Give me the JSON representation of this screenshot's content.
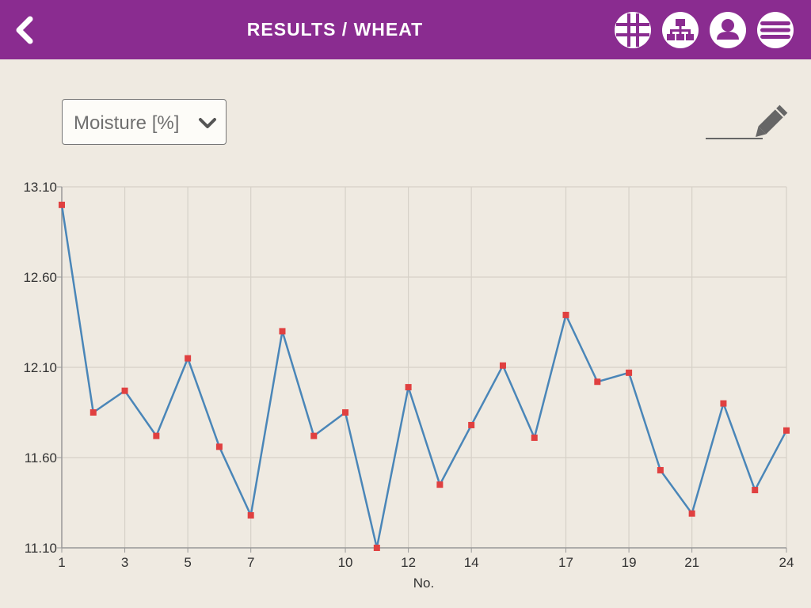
{
  "header": {
    "title": "RESULTS / WHEAT",
    "background_color": "#8a2c90",
    "icons": [
      "back-icon",
      "grid-icon",
      "network-icon",
      "user-icon",
      "menu-icon"
    ]
  },
  "selector": {
    "value": "Moisture [%]",
    "icon": "chevron-down-icon"
  },
  "edit": {
    "icon": "pencil-icon"
  },
  "chart_data": {
    "type": "line",
    "xlabel": "No.",
    "ylabel": "",
    "x": [
      1,
      2,
      3,
      4,
      5,
      6,
      7,
      8,
      9,
      10,
      11,
      12,
      13,
      14,
      15,
      16,
      17,
      18,
      19,
      20,
      21,
      22,
      23,
      24
    ],
    "values": [
      13.0,
      11.85,
      11.97,
      11.72,
      12.15,
      11.66,
      11.28,
      12.3,
      11.72,
      11.85,
      11.1,
      11.99,
      11.45,
      11.78,
      12.11,
      11.71,
      12.39,
      12.02,
      12.07,
      11.53,
      11.29,
      11.9,
      11.42,
      11.75
    ],
    "xlim": [
      1,
      24
    ],
    "ylim": [
      11.1,
      13.1
    ],
    "y_ticks": [
      "11.10",
      "11.60",
      "12.10",
      "12.60",
      "13.10"
    ],
    "x_ticks": [
      "1",
      "3",
      "5",
      "7",
      "10",
      "12",
      "14",
      "17",
      "19",
      "21",
      "24"
    ],
    "grid": true,
    "line_color": "#4a86b8",
    "marker_color": "#e04040"
  }
}
